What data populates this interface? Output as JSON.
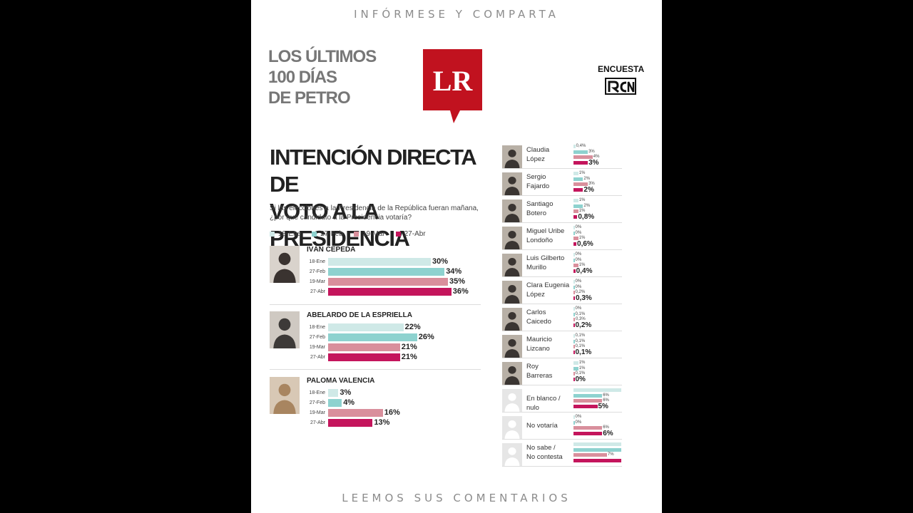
{
  "header": {
    "top_tagline": "INFÓRMESE Y COMPARTA",
    "bottom_tagline": "LEEMOS SUS COMENTARIOS",
    "section_lines": [
      "LOS ÚLTIMOS",
      "100 DÍAS",
      "DE PETRO"
    ],
    "logo_text": "LR",
    "survey_label": "ENCUESTA",
    "survey_brand": "RCN"
  },
  "colors": {
    "18-Ene": "#cfe9e7",
    "27-Feb": "#8ed2cf",
    "19-Mar": "#d98f9c",
    "27-Abr": "#c4155c",
    "logo_red": "#c1121f"
  },
  "chart_data": {
    "type": "bar",
    "title_lines": [
      "INTENCIÓN DIRECTA DE",
      "VOTO A LA PRESIDENCIA"
    ],
    "question_lines": [
      "Si las elecciones a la Presidencia de la República fueran mañana,",
      "¿por qué candidato a la Presidencia votaría?"
    ],
    "dates": [
      "18-Ene",
      "27-Feb",
      "19-Mar",
      "27-Abr"
    ],
    "unit": "%",
    "main_candidates": [
      {
        "name": "IVÁN CEPEDA",
        "values": [
          30,
          34,
          35,
          36
        ],
        "labels": [
          "30%",
          "34%",
          "35%",
          "36%"
        ]
      },
      {
        "name": "ABELARDO DE LA ESPRIELLA",
        "values": [
          22,
          26,
          21,
          21
        ],
        "labels": [
          "22%",
          "26%",
          "21%",
          "21%"
        ]
      },
      {
        "name": "PALOMA VALENCIA",
        "values": [
          3,
          4,
          16,
          13
        ],
        "labels": [
          "3%",
          "4%",
          "16%",
          "13%"
        ]
      }
    ],
    "other_candidates": [
      {
        "name_lines": [
          "Claudia",
          "López"
        ],
        "values": [
          0.4,
          3,
          4,
          3
        ],
        "labels": [
          "0,4%",
          "3%",
          "4%",
          "3%"
        ]
      },
      {
        "name_lines": [
          "Sergio",
          "Fajardo"
        ],
        "values": [
          1,
          2,
          3,
          2
        ],
        "labels": [
          "1%",
          "2%",
          "3%",
          "2%"
        ]
      },
      {
        "name_lines": [
          "Santiago",
          "Botero"
        ],
        "values": [
          1,
          2,
          1,
          0.8
        ],
        "labels": [
          "1%",
          "2%",
          "1%",
          "0,8%"
        ]
      },
      {
        "name_lines": [
          "Miguel Uribe",
          "Londoño"
        ],
        "values": [
          0,
          0,
          1,
          0.6
        ],
        "labels": [
          "0%",
          "0%",
          "1%",
          "0,6%"
        ]
      },
      {
        "name_lines": [
          "Luis Gilberto",
          "Murillo"
        ],
        "values": [
          0,
          0,
          1,
          0.4
        ],
        "labels": [
          "0%",
          "0%",
          "1%",
          "0,4%"
        ]
      },
      {
        "name_lines": [
          "Clara Eugenia",
          "López"
        ],
        "values": [
          0,
          0,
          0.2,
          0.3
        ],
        "labels": [
          "0%",
          "0%",
          "0,2%",
          "0,3%"
        ]
      },
      {
        "name_lines": [
          "Carlos",
          "Caicedo"
        ],
        "values": [
          0,
          0.1,
          0.3,
          0.2
        ],
        "labels": [
          "0%",
          "0,1%",
          "0,3%",
          "0,2%"
        ]
      },
      {
        "name_lines": [
          "Mauricio",
          "Lizcano"
        ],
        "values": [
          0.1,
          0.1,
          0.1,
          0.1
        ],
        "labels": [
          "0,1%",
          "0,1%",
          "0,1%",
          "0,1%"
        ]
      },
      {
        "name_lines": [
          "Roy",
          "Barreras"
        ],
        "values": [
          1,
          1,
          0.1,
          0
        ],
        "labels": [
          "1%",
          "1%",
          "0,1%",
          "0%"
        ]
      },
      {
        "name_lines": [
          "En blanco / nulo"
        ],
        "values": [
          10,
          6,
          6,
          5
        ],
        "labels": [
          "",
          "6%",
          "6%",
          "5%"
        ]
      },
      {
        "name_lines": [
          "No votaría"
        ],
        "values": [
          0,
          0,
          6,
          6
        ],
        "labels": [
          "0%",
          "0%",
          "6%",
          "6%"
        ]
      },
      {
        "name_lines": [
          "No sabe /",
          "No contesta"
        ],
        "values": [
          10,
          10,
          7,
          10
        ],
        "labels": [
          "",
          "",
          "7%",
          ""
        ]
      }
    ]
  }
}
